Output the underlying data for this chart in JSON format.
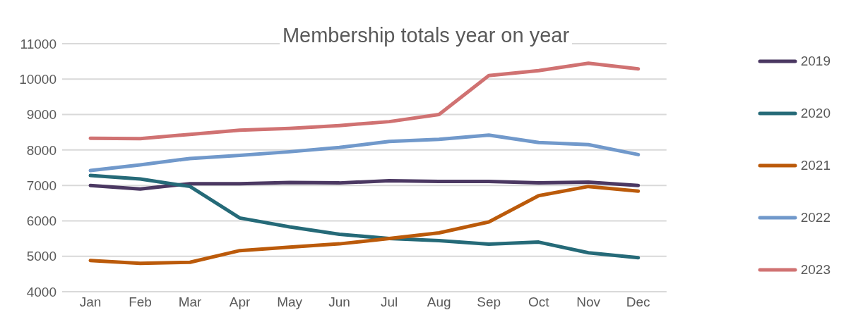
{
  "chart_data": {
    "type": "line",
    "title": "Membership totals year on year",
    "categories": [
      "Jan",
      "Feb",
      "Mar",
      "Apr",
      "May",
      "Jun",
      "Jul",
      "Aug",
      "Sep",
      "Oct",
      "Nov",
      "Dec"
    ],
    "series": [
      {
        "name": "2019",
        "color": "#4b3862",
        "values": [
          7000,
          6900,
          7050,
          7050,
          7080,
          7070,
          7130,
          7110,
          7110,
          7070,
          7090,
          7000
        ]
      },
      {
        "name": "2020",
        "color": "#256a78",
        "values": [
          7280,
          7180,
          6970,
          6080,
          5830,
          5620,
          5500,
          5440,
          5340,
          5400,
          5100,
          4960
        ]
      },
      {
        "name": "2021",
        "color": "#bb5a0a",
        "values": [
          4880,
          4800,
          4830,
          5160,
          5260,
          5350,
          5500,
          5660,
          5970,
          6710,
          6970,
          6840
        ]
      },
      {
        "name": "2022",
        "color": "#7199cb",
        "values": [
          7420,
          7580,
          7760,
          7850,
          7950,
          8070,
          8240,
          8300,
          8420,
          8210,
          8150,
          7870
        ]
      },
      {
        "name": "2023",
        "color": "#d07272",
        "values": [
          8330,
          8320,
          8440,
          8560,
          8610,
          8690,
          8800,
          9000,
          10100,
          10240,
          10450,
          10290
        ]
      }
    ],
    "ylim": [
      4000,
      11000
    ],
    "yticks": [
      4000,
      5000,
      6000,
      7000,
      8000,
      9000,
      10000,
      11000
    ],
    "grid": "y",
    "legend": "right",
    "marker": "none",
    "line_style": "solid"
  }
}
